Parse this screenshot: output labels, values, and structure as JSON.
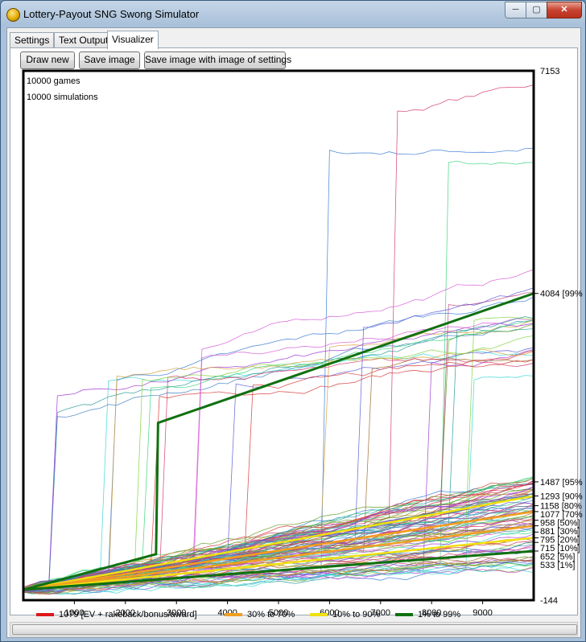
{
  "window": {
    "title": "Lottery-Payout SNG Swong Simulator",
    "controls": {
      "minimize": "─",
      "maximize": "▢",
      "close": "✕"
    }
  },
  "tabs": [
    {
      "label": "Settings",
      "active": false
    },
    {
      "label": "Text Output",
      "active": false
    },
    {
      "label": "Visualizer",
      "active": true
    }
  ],
  "toolbar": {
    "draw_new": "Draw new",
    "save_image": "Save image",
    "save_image_settings": "Save image with image of settings"
  },
  "chart_data": {
    "type": "line",
    "info": [
      "10000 games",
      "10000 simulations"
    ],
    "x_ticks": [
      1000,
      2000,
      3000,
      4000,
      5000,
      6000,
      7000,
      8000,
      9000
    ],
    "xlim": [
      0,
      10000
    ],
    "ylim": [
      -144,
      7153
    ],
    "y_top_label": "7153",
    "y_bottom_label": "-144",
    "right_labels": [
      {
        "value": 4084,
        "text": "4084 [99%"
      },
      {
        "value": 1487,
        "text": "1487 [95%"
      },
      {
        "value": 1293,
        "text": "1293 [90%"
      },
      {
        "value": 1158,
        "text": "1158 [80%"
      },
      {
        "value": 1077,
        "text": "1077 [70%"
      },
      {
        "value": 958,
        "text": "958 [50%]"
      },
      {
        "value": 881,
        "text": "881 [30%]"
      },
      {
        "value": 795,
        "text": "795 [20%]"
      },
      {
        "value": 715,
        "text": "715 [10%]"
      },
      {
        "value": 652,
        "text": "652 [5%]"
      },
      {
        "value": 533,
        "text": "533 [1%]"
      }
    ],
    "percentile_lines": [
      {
        "value": 1079,
        "color": "#dd1818",
        "width": 2.5
      },
      {
        "value": 1293,
        "color": "#f0e010",
        "width": 2.5
      },
      {
        "value": 1077,
        "color": "#f0a020",
        "width": 2.5
      },
      {
        "value": 881,
        "color": "#f0a020",
        "width": 2.5
      },
      {
        "value": 715,
        "color": "#f0e010",
        "width": 2.5
      },
      {
        "value": 533,
        "color": "#107010",
        "width": 3
      },
      {
        "value": 4084,
        "color": "#107010",
        "width": 3
      }
    ],
    "legend": [
      {
        "color": "#dd1818",
        "label": "1079 [EV + rakeback/bonus/award]"
      },
      {
        "color": "#f0a020",
        "label": "30% to 70%"
      },
      {
        "color": "#f0e010",
        "label": "10% to 90%"
      },
      {
        "color": "#107010",
        "label": "1% to 99%"
      }
    ],
    "grid": false
  }
}
